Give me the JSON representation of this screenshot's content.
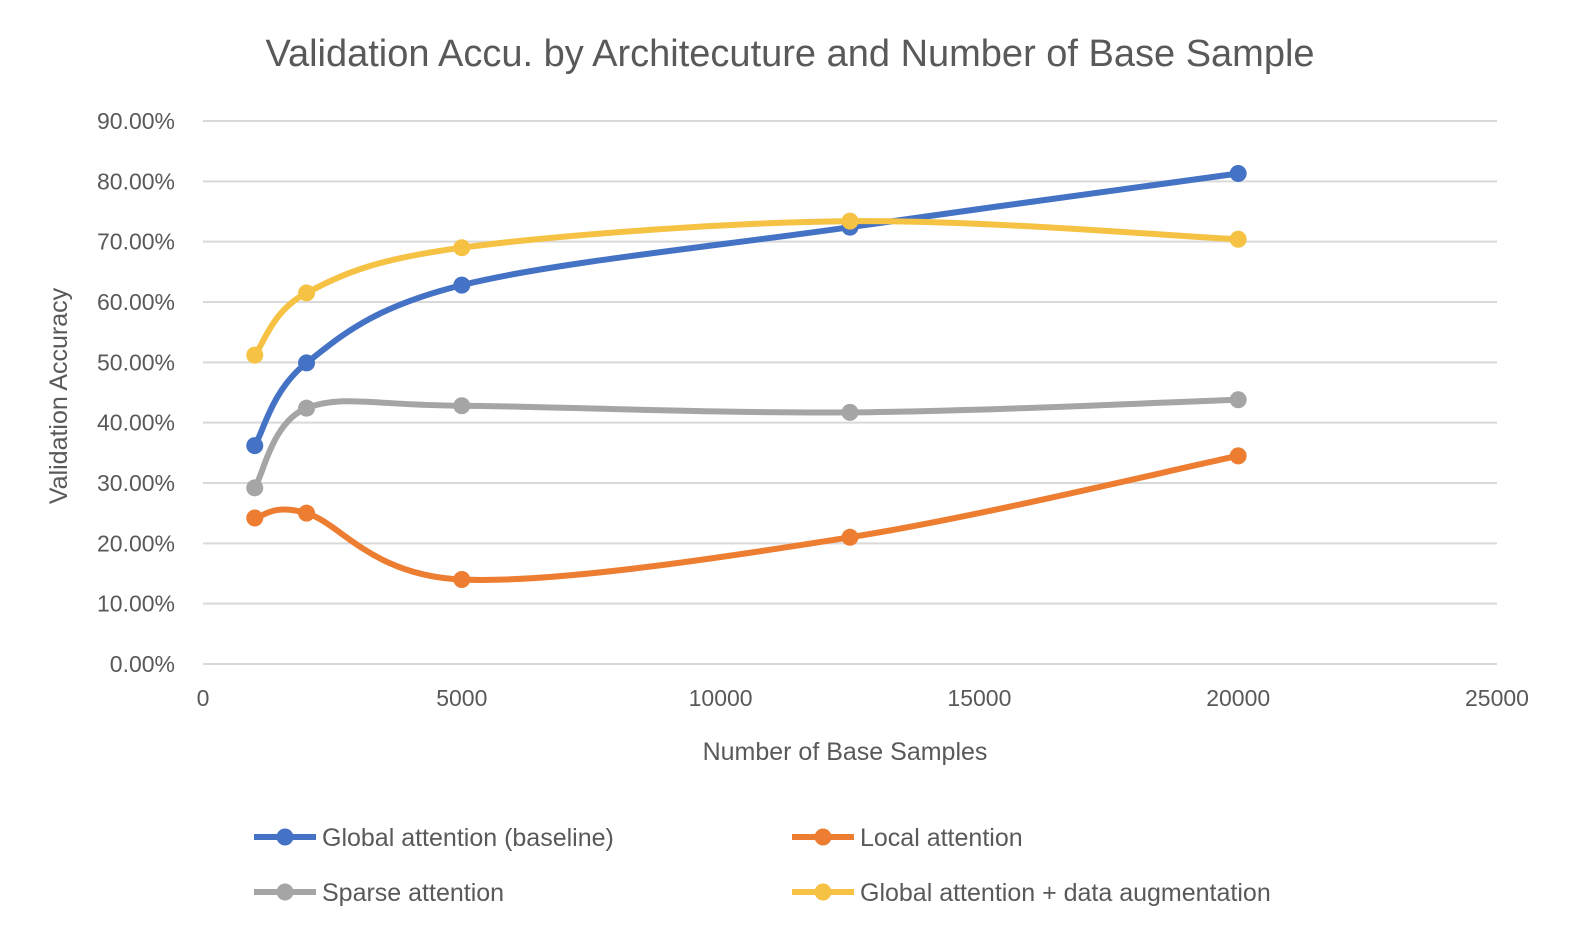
{
  "chart_data": {
    "type": "line",
    "title": "Validation Accu. by Architecuture and Number of Base Sample",
    "xlabel": "Number of Base Samples",
    "ylabel": "Validation Accuracy",
    "xlim": [
      0,
      25000
    ],
    "ylim": [
      0,
      0.9
    ],
    "x_ticks": [
      0,
      5000,
      10000,
      15000,
      20000,
      25000
    ],
    "x_tick_labels": [
      "0",
      "5000",
      "10000",
      "15000",
      "20000",
      "25000"
    ],
    "y_ticks": [
      0,
      0.1,
      0.2,
      0.3,
      0.4,
      0.5,
      0.6,
      0.7,
      0.8,
      0.9
    ],
    "y_tick_labels": [
      "0.00%",
      "10.00%",
      "20.00%",
      "30.00%",
      "40.00%",
      "50.00%",
      "60.00%",
      "70.00%",
      "80.00%",
      "90.00%"
    ],
    "grid": "horizontal",
    "legend_position": "bottom",
    "smooth": true,
    "x": [
      1000,
      2000,
      5000,
      12500,
      20000
    ],
    "series": [
      {
        "name": "Global attention (baseline)",
        "color": "#4472C4",
        "values": [
          0.362,
          0.499,
          0.628,
          0.724,
          0.813
        ]
      },
      {
        "name": "Local attention",
        "color": "#ED7D31",
        "values": [
          0.242,
          0.25,
          0.14,
          0.21,
          0.345
        ]
      },
      {
        "name": "Sparse attention",
        "color": "#A5A5A5",
        "values": [
          0.292,
          0.424,
          0.428,
          0.417,
          0.438
        ]
      },
      {
        "name": "Global attention + data augmentation",
        "color": "#F5C243",
        "values": [
          0.512,
          0.615,
          0.69,
          0.734,
          0.704
        ]
      }
    ]
  }
}
